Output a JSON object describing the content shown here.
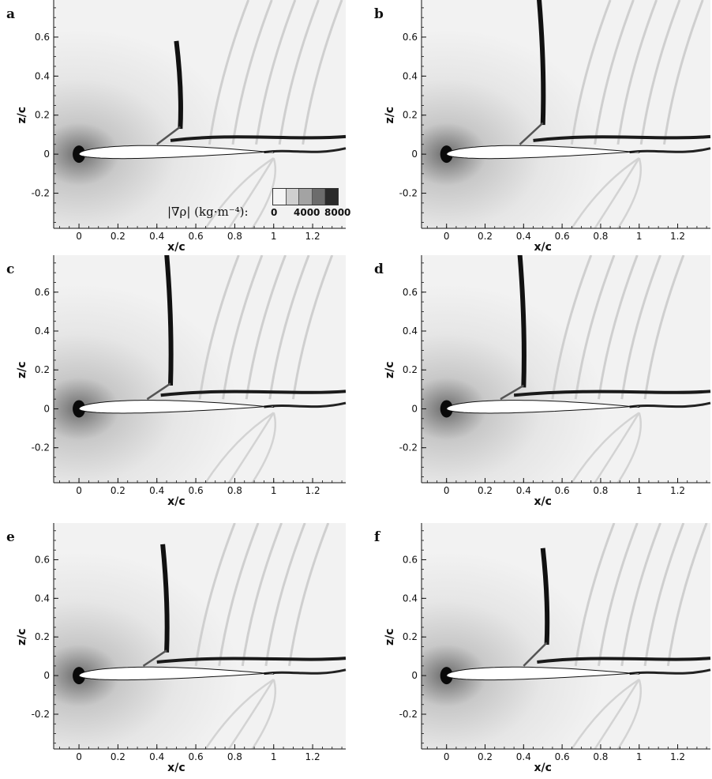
{
  "figure": {
    "panels": [
      {
        "id": "a",
        "letter": "a",
        "shock_x": 0.52,
        "shock_top": 0.58,
        "shock_foot": 0.08
      },
      {
        "id": "b",
        "letter": "b",
        "shock_x": 0.5,
        "shock_top": 0.8,
        "shock_foot": 0.1
      },
      {
        "id": "c",
        "letter": "c",
        "shock_x": 0.47,
        "shock_top": 0.8,
        "shock_foot": 0.07
      },
      {
        "id": "d",
        "letter": "d",
        "shock_x": 0.4,
        "shock_top": 0.8,
        "shock_foot": 0.06
      },
      {
        "id": "e",
        "letter": "e",
        "shock_x": 0.45,
        "shock_top": 0.68,
        "shock_foot": 0.07
      },
      {
        "id": "f",
        "letter": "f",
        "shock_x": 0.52,
        "shock_top": 0.66,
        "shock_foot": 0.11
      }
    ],
    "x_axis": {
      "title": "x/c",
      "range": [
        -0.13,
        1.37
      ],
      "ticks": [
        "0",
        "0.2",
        "0.4",
        "0.6",
        "0.8",
        "1",
        "1.2"
      ],
      "tick_values": [
        0,
        0.2,
        0.4,
        0.6,
        0.8,
        1.0,
        1.2
      ]
    },
    "z_axis": {
      "title": "z/c",
      "range": [
        -0.38,
        0.79
      ],
      "ticks": [
        "0.6",
        "0.4",
        "0.2",
        "0",
        "-0.2"
      ],
      "tick_values": [
        0.6,
        0.4,
        0.2,
        0,
        -0.2
      ]
    },
    "colorbar": {
      "label": "|∇ρ| (kg·m⁻⁴):",
      "ticks": [
        "0",
        "4000",
        "8000"
      ],
      "range": [
        0,
        8000
      ],
      "colors": [
        "#f4f4f4",
        "#cfcfcf",
        "#a3a3a3",
        "#6c6c6c",
        "#2b2b2b"
      ]
    }
  }
}
